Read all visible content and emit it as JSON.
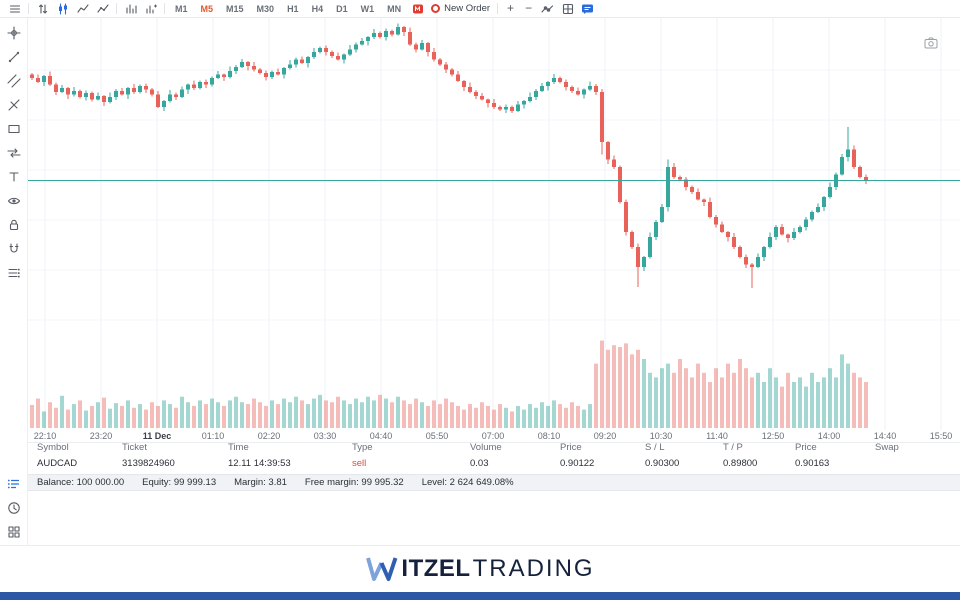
{
  "toolbar": {
    "timeframes": [
      "M1",
      "M5",
      "M15",
      "M30",
      "H1",
      "H4",
      "D1",
      "W1",
      "MN"
    ],
    "active_timeframe": "M5",
    "new_order_label": "New Order",
    "zoom_in_label": "+",
    "zoom_out_label": "−",
    "icons": [
      "menu",
      "auto-scroll-arrows",
      "candlestick-style",
      "line-chart",
      "polyline-chart",
      "histogram",
      "bar-stats",
      "platform-logo",
      "new-order-ring",
      "zoom-in",
      "zoom-out",
      "indicators",
      "layout-grid",
      "chat"
    ]
  },
  "sidebar": {
    "tools": [
      "crosshair",
      "trend-line",
      "parallel-channel",
      "pitchfork",
      "rectangle",
      "arrows",
      "text",
      "eye",
      "lock",
      "magnet",
      "object-list"
    ]
  },
  "bottom_tools": [
    "trade-list",
    "history",
    "grid-view"
  ],
  "chart_data": {
    "type": "candlestick+volume",
    "symbol": "AUDCAD",
    "timeframe": "M5",
    "price_line": 0.90163,
    "price_top_1e5": 90480,
    "price_range_approx": [
      0.8995,
      0.9048
    ],
    "open_first_1e5": 90375,
    "closes_1e5": [
      90368,
      90360,
      90372,
      90355,
      90340,
      90348,
      90335,
      90342,
      90330,
      90338,
      90325,
      90332,
      90320,
      90330,
      90342,
      90335,
      90348,
      90340,
      90352,
      90345,
      90335,
      90310,
      90322,
      90335,
      90330,
      90345,
      90355,
      90348,
      90360,
      90355,
      90368,
      90375,
      90370,
      90382,
      90390,
      90400,
      90392,
      90385,
      90378,
      90370,
      90380,
      90375,
      90388,
      90395,
      90405,
      90398,
      90410,
      90420,
      90428,
      90420,
      90412,
      90405,
      90415,
      90425,
      90435,
      90442,
      90450,
      90458,
      90450,
      90462,
      90455,
      90470,
      90460,
      90435,
      90425,
      90438,
      90420,
      90405,
      90395,
      90385,
      90375,
      90362,
      90350,
      90340,
      90332,
      90325,
      90318,
      90310,
      90305,
      90310,
      90302,
      90315,
      90322,
      90330,
      90342,
      90352,
      90360,
      90368,
      90360,
      90350,
      90342,
      90335,
      90345,
      90352,
      90340,
      90240,
      90205,
      90190,
      90120,
      90060,
      90030,
      89990,
      90010,
      90050,
      90080,
      90110,
      90190,
      90170,
      90165,
      90150,
      90140,
      90125,
      90120,
      90090,
      90075,
      90060,
      90050,
      90030,
      90010,
      89995,
      89990,
      90010,
      90030,
      90050,
      90070,
      90055,
      90048,
      90060,
      90070,
      90085,
      90100,
      90110,
      90130,
      90150,
      90175,
      90210,
      90225,
      90190,
      90170,
      90163
    ],
    "volumes": [
      25,
      32,
      18,
      28,
      22,
      35,
      20,
      26,
      30,
      19,
      24,
      28,
      33,
      21,
      27,
      24,
      30,
      22,
      26,
      20,
      28,
      24,
      30,
      26,
      22,
      34,
      28,
      24,
      30,
      26,
      32,
      28,
      24,
      30,
      34,
      28,
      26,
      32,
      28,
      24,
      30,
      26,
      32,
      28,
      34,
      30,
      26,
      32,
      36,
      30,
      28,
      34,
      30,
      26,
      32,
      28,
      34,
      30,
      36,
      32,
      28,
      34,
      30,
      26,
      32,
      28,
      24,
      30,
      26,
      32,
      28,
      24,
      20,
      26,
      22,
      28,
      24,
      20,
      26,
      22,
      18,
      24,
      20,
      26,
      22,
      28,
      24,
      30,
      26,
      22,
      28,
      24,
      20,
      26,
      70,
      95,
      85,
      90,
      88,
      92,
      80,
      85,
      75,
      60,
      55,
      65,
      70,
      60,
      75,
      65,
      55,
      70,
      60,
      50,
      65,
      55,
      70,
      60,
      75,
      65,
      55,
      60,
      50,
      65,
      55,
      45,
      60,
      50,
      55,
      45,
      60,
      50,
      55,
      65,
      55,
      80,
      70,
      60,
      55,
      50
    ],
    "wick_up_1e5": [
      3,
      7,
      2,
      9,
      4,
      6,
      2,
      8,
      3,
      5
    ],
    "wick_dn_1e5": [
      4,
      2,
      8,
      3,
      6,
      2,
      9,
      4,
      3,
      7
    ],
    "wick_overrides": {
      "95": {
        "low_1e5": 90215
      },
      "101": {
        "low_1e5": 89950
      },
      "106": {
        "high_1e5": 90205
      },
      "120": {
        "low_1e5": 89948
      },
      "136": {
        "high_1e5": 90270
      }
    },
    "xticks": [
      "22:10",
      "23:20",
      "11 Dec",
      "01:10",
      "02:20",
      "03:30",
      "04:40",
      "05:50",
      "07:00",
      "08:10",
      "09:20",
      "10:30",
      "11:40",
      "12:50",
      "14:00",
      "14:40",
      "15:50"
    ],
    "bold_tick_index": 2,
    "grid": true,
    "legend": "none"
  },
  "positions_table": {
    "headers": [
      "Symbol",
      "Ticket",
      "Time",
      "Type",
      "Volume",
      "Price",
      "S / L",
      "T / P",
      "Price",
      "Swap"
    ],
    "rows": [
      [
        "AUDCAD",
        "3139824960",
        "12.11 14:39:53",
        "sell",
        "0.03",
        "0.90122",
        "0.90300",
        "0.89800",
        "0.90163",
        ""
      ]
    ]
  },
  "account": {
    "items": [
      "Balance: 100 000.00",
      "Equity: 99 999.13",
      "Margin: 3.81",
      "Free margin: 99 995.32",
      "Level: 2 624 649.08%"
    ]
  },
  "footer": {
    "logo_w": "W",
    "logo_bold": "ITZEL",
    "logo_light": "TRADING"
  },
  "colors": {
    "up": "#35a79c",
    "down": "#e8625a",
    "vol_up": "rgba(53,167,156,0.45)",
    "vol_down": "rgba(232,98,90,0.42)",
    "price_line": "#35a79c",
    "accent_blue": "#2a6bdd",
    "timeframe_active": "#e0582a",
    "sell_red": "#e0483e",
    "footer_bar": "#2b57a5"
  }
}
